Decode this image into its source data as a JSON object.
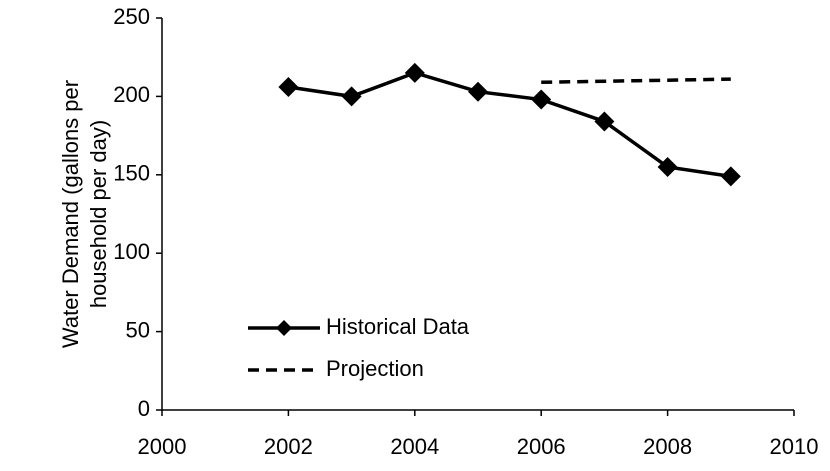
{
  "chart_data": {
    "type": "line",
    "ylabel": [
      "Water Demand (gallons per",
      "household per day)"
    ],
    "series": [
      {
        "name": "Historical Data",
        "color": "#000000",
        "line_style": "solid",
        "marker": "diamond",
        "x": [
          2002,
          2003,
          2004,
          2005,
          2006,
          2007,
          2008,
          2009
        ],
        "values": [
          206,
          200,
          215,
          203,
          198,
          184,
          155,
          149
        ]
      },
      {
        "name": "Projection",
        "color": "#000000",
        "line_style": "dashed",
        "marker": "none",
        "x": [
          2006,
          2009
        ],
        "values": [
          209,
          211
        ]
      }
    ],
    "xlim": [
      2000,
      2010
    ],
    "xticks": [
      2000,
      2002,
      2004,
      2006,
      2008,
      2010
    ],
    "ylim": [
      0,
      250
    ],
    "yticks": [
      0,
      50,
      100,
      150,
      200,
      250
    ],
    "grid": false,
    "legend": "lower left"
  }
}
